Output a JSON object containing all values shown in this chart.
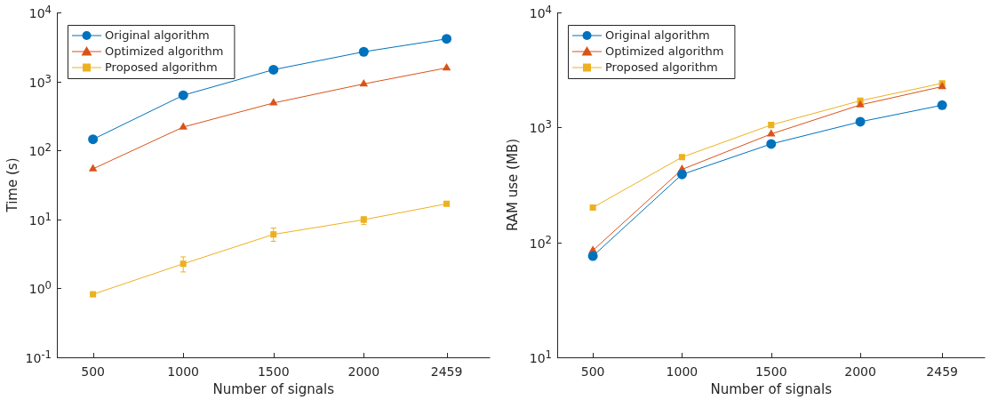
{
  "chart_data": [
    {
      "type": "line",
      "xlabel": "Number of signals",
      "ylabel": "Time (s)",
      "x": [
        500,
        1000,
        1500,
        2000,
        2459
      ],
      "xlim": [
        300,
        2700
      ],
      "xticks": [
        500,
        1000,
        1500,
        2000,
        2459
      ],
      "ylim": [
        0.1,
        10000
      ],
      "yticks": [
        {
          "value": 0.1,
          "label": "10$^{-1}$"
        },
        {
          "value": 1,
          "label": "10$^{0}$"
        },
        {
          "value": 10,
          "label": "10$^{1}$"
        },
        {
          "value": 100,
          "label": "10$^{2}$"
        },
        {
          "value": 1000,
          "label": "10$^{3}$"
        },
        {
          "value": 10000,
          "label": "10$^{4}$"
        }
      ],
      "log": "y",
      "grid": false,
      "legend": "top left",
      "line_style": "solid",
      "series": [
        {
          "name": "Original algorithm",
          "color": "#0072bd",
          "marker": "circle",
          "values": [
            145,
            630,
            1480,
            2690,
            4140
          ]
        },
        {
          "name": "Optimized algorithm",
          "color": "#d95319",
          "marker": "triangle",
          "values": [
            54,
            218,
            487,
            920,
            1570
          ]
        },
        {
          "name": "Proposed algorithm",
          "color": "#edb120",
          "marker": "square",
          "values": [
            0.82,
            2.27,
            6.06,
            9.9,
            16.8
          ],
          "errors": [
            null,
            [
              1.73,
              2.86
            ],
            [
              4.8,
              7.5
            ],
            [
              8.4,
              10.9
            ],
            null
          ]
        }
      ]
    },
    {
      "type": "line",
      "xlabel": "Number of signals",
      "ylabel": "RAM use (MB)",
      "x": [
        500,
        1000,
        1500,
        2000,
        2459
      ],
      "xlim": [
        300,
        2700
      ],
      "xticks": [
        500,
        1000,
        1500,
        2000,
        2459
      ],
      "ylim": [
        10,
        10000
      ],
      "yticks": [
        {
          "value": 10,
          "label": "10$^{1}$"
        },
        {
          "value": 100,
          "label": "10$^{2}$"
        },
        {
          "value": 1000,
          "label": "10$^{3}$"
        },
        {
          "value": 10000,
          "label": "10$^{4}$"
        }
      ],
      "log": "y",
      "grid": false,
      "legend": "top left",
      "line_style": "solid",
      "series": [
        {
          "name": "Original algorithm",
          "color": "#0072bd",
          "marker": "circle",
          "values": [
            76,
            390,
            718,
            1120,
            1560
          ]
        },
        {
          "name": "Optimized algorithm",
          "color": "#d95319",
          "marker": "triangle",
          "values": [
            85,
            431,
            877,
            1570,
            2265
          ]
        },
        {
          "name": "Proposed algorithm",
          "color": "#edb120",
          "marker": "square",
          "values": [
            201,
            551,
            1050,
            1706,
            2420
          ]
        }
      ]
    }
  ]
}
